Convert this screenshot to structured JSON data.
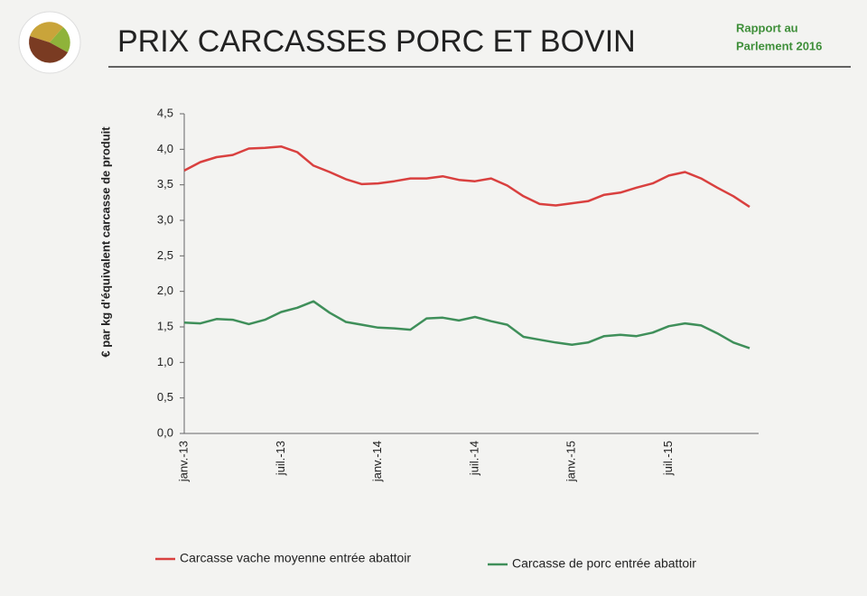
{
  "chart_data": {
    "type": "line",
    "title": "PRIX CARCASSES PORC ET BOVIN",
    "report_label": [
      "Rapport au",
      "Parlement 2016"
    ],
    "y_label": "€ par kg d'équivalent carcasse de produit",
    "categories": [
      "janv.-13",
      null,
      null,
      null,
      null,
      null,
      "juil.-13",
      null,
      null,
      null,
      null,
      null,
      "janv.-14",
      null,
      null,
      null,
      null,
      null,
      "juil.-14",
      null,
      null,
      null,
      null,
      null,
      "janv.-15",
      null,
      null,
      null,
      null,
      null,
      "juil.-15",
      null,
      null,
      null,
      null,
      null
    ],
    "series": [
      {
        "name": "Carcasse vache moyenne  entrée abattoir",
        "color": "#d9403f",
        "values": [
          3.7,
          3.82,
          3.89,
          3.92,
          4.01,
          4.02,
          4.04,
          3.96,
          3.77,
          3.68,
          3.58,
          3.51,
          3.52,
          3.55,
          3.59,
          3.59,
          3.62,
          3.57,
          3.55,
          3.59,
          3.49,
          3.34,
          3.23,
          3.21,
          3.24,
          3.27,
          3.36,
          3.39,
          3.46,
          3.52,
          3.63,
          3.68,
          3.59,
          3.46,
          3.34,
          3.19
        ]
      },
      {
        "name": "Carcasse de porc entrée abattoir",
        "color": "#3f8f5a",
        "values": [
          1.56,
          1.55,
          1.61,
          1.6,
          1.54,
          1.6,
          1.71,
          1.77,
          1.86,
          1.7,
          1.57,
          1.53,
          1.49,
          1.48,
          1.46,
          1.62,
          1.63,
          1.59,
          1.64,
          1.58,
          1.53,
          1.36,
          1.32,
          1.28,
          1.25,
          1.28,
          1.37,
          1.39,
          1.37,
          1.42,
          1.51,
          1.55,
          1.52,
          1.41,
          1.28,
          1.2
        ]
      }
    ],
    "ylim": [
      0,
      4.5
    ],
    "yticks": [
      {
        "value": 0,
        "label": "0,0"
      },
      {
        "value": 0.5,
        "label": "0,5"
      },
      {
        "value": 1,
        "label": "1,0"
      },
      {
        "value": 1.5,
        "label": "1,5"
      },
      {
        "value": 2,
        "label": "2,0"
      },
      {
        "value": 2.5,
        "label": "2,5"
      },
      {
        "value": 3,
        "label": "3,0"
      },
      {
        "value": 3.5,
        "label": "3,5"
      },
      {
        "value": 4,
        "label": "4,0"
      },
      {
        "value": 4.5,
        "label": "4,5"
      }
    ],
    "grid": false,
    "legend": "bottom"
  }
}
